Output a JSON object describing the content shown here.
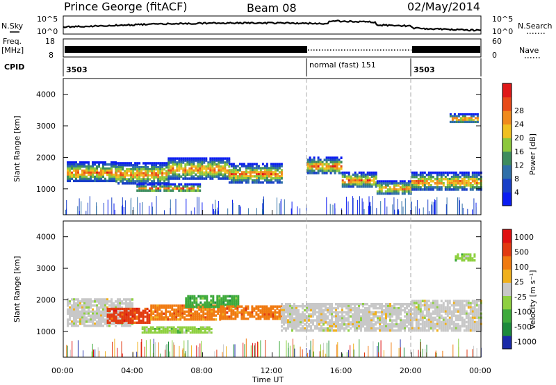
{
  "header": {
    "station": "Prince George (fitACF)",
    "beam": "Beam 08",
    "date": "02/May/2014"
  },
  "strips": {
    "nsky_label": "N.Sky",
    "nsky_ticks": [
      "10^5",
      "10^0"
    ],
    "nsearch_label": "N.Search",
    "nsearch_ticks": [
      "10^5",
      "10^0"
    ],
    "freq_label": "Freq.",
    "freq_unit": "[MHz]",
    "freq_ticks": [
      "18",
      "8"
    ],
    "nave_label": "Nave",
    "nave_ticks": [
      "60",
      "0"
    ],
    "cpid_label": "CPID",
    "cpid_segments": [
      {
        "text": "3503",
        "start_hour": 0,
        "end_hour": 14
      },
      {
        "text": "normal (fast) 151",
        "start_hour": 14,
        "end_hour": 20
      },
      {
        "text": "3503",
        "start_hour": 20,
        "end_hour": 24
      }
    ]
  },
  "chart_data": [
    {
      "type": "heatmap",
      "name": "power-panel",
      "ylabel": "Slant Range [km]",
      "y_ticks": [
        1000,
        2000,
        3000,
        4000
      ],
      "ylim": [
        180,
        4500
      ],
      "x_ticks": [
        "00:00",
        "04:00",
        "08:00",
        "12:00",
        "16:00",
        "20:00",
        "00:00"
      ],
      "xlim_hours": [
        0,
        24
      ],
      "colorbar": {
        "label": "Power [dB]",
        "ticks": [
          "4",
          "8",
          "12",
          "16",
          "20",
          "24",
          "28"
        ],
        "colors": [
          "#0a1cf2",
          "#1840c8",
          "#2f6fa8",
          "#3e8c5e",
          "#8cc83c",
          "#f0c020",
          "#f08a1c",
          "#e84a18",
          "#e01818"
        ]
      },
      "bands": [
        {
          "start_hour": 0.2,
          "end_hour": 3.0,
          "center_km": 1550,
          "width_km": 650
        },
        {
          "start_hour": 3.0,
          "end_hour": 6.0,
          "center_km": 1500,
          "width_km": 700
        },
        {
          "start_hour": 4.2,
          "end_hour": 7.8,
          "center_km": 1050,
          "width_km": 260
        },
        {
          "start_hour": 6.0,
          "end_hour": 9.5,
          "center_km": 1650,
          "width_km": 700
        },
        {
          "start_hour": 9.5,
          "end_hour": 12.5,
          "center_km": 1500,
          "width_km": 650
        },
        {
          "start_hour": 14.0,
          "end_hour": 16.0,
          "center_km": 1750,
          "width_km": 550
        },
        {
          "start_hour": 16.0,
          "end_hour": 18.0,
          "center_km": 1300,
          "width_km": 500
        },
        {
          "start_hour": 18.0,
          "end_hour": 20.0,
          "center_km": 1050,
          "width_km": 450
        },
        {
          "start_hour": 20.0,
          "end_hour": 24.0,
          "center_km": 1250,
          "width_km": 600
        },
        {
          "start_hour": 22.2,
          "end_hour": 23.8,
          "center_km": 3250,
          "width_km": 300
        }
      ]
    },
    {
      "type": "heatmap",
      "name": "velocity-panel",
      "ylabel": "Slant Range [km]",
      "xlabel": "Time UT",
      "y_ticks": [
        1000,
        2000,
        3000,
        4000
      ],
      "ylim": [
        180,
        4500
      ],
      "x_ticks": [
        "00:00",
        "04:00",
        "08:00",
        "12:00",
        "16:00",
        "20:00",
        "00:00"
      ],
      "xlim_hours": [
        0,
        24
      ],
      "colorbar": {
        "label": "Velocity [m s⁻¹]",
        "ticks": [
          "1000",
          "500",
          "100",
          "25",
          "-25",
          "-100",
          "-500",
          "-1000"
        ],
        "colors": [
          "#1a2aa8",
          "#1c8a3c",
          "#3eaa3c",
          "#8ed040",
          "#c8c8c8",
          "#f0b01c",
          "#f07a10",
          "#e23a10",
          "#e01010"
        ]
      },
      "bands": [
        {
          "start_hour": 0.2,
          "end_hour": 4.0,
          "center_km": 1600,
          "width_km": 900,
          "color_index": 4
        },
        {
          "start_hour": 2.5,
          "end_hour": 5.0,
          "center_km": 1500,
          "width_km": 500,
          "color_index": 7
        },
        {
          "start_hour": 5.0,
          "end_hour": 9.0,
          "center_km": 1600,
          "width_km": 500,
          "color_index": 6
        },
        {
          "start_hour": 4.5,
          "end_hour": 8.5,
          "center_km": 1050,
          "width_km": 220,
          "color_index": 3
        },
        {
          "start_hour": 7.0,
          "end_hour": 10.0,
          "center_km": 1950,
          "width_km": 400,
          "color_index": 2
        },
        {
          "start_hour": 9.0,
          "end_hour": 12.5,
          "center_km": 1600,
          "width_km": 450,
          "color_index": 6
        },
        {
          "start_hour": 12.5,
          "end_hour": 20.0,
          "center_km": 1450,
          "width_km": 900,
          "color_index": 4
        },
        {
          "start_hour": 20.0,
          "end_hour": 24.0,
          "center_km": 1500,
          "width_km": 1000,
          "color_index": 4
        },
        {
          "start_hour": 22.5,
          "end_hour": 23.6,
          "center_km": 3350,
          "width_km": 250,
          "color_index": 3
        }
      ]
    }
  ]
}
